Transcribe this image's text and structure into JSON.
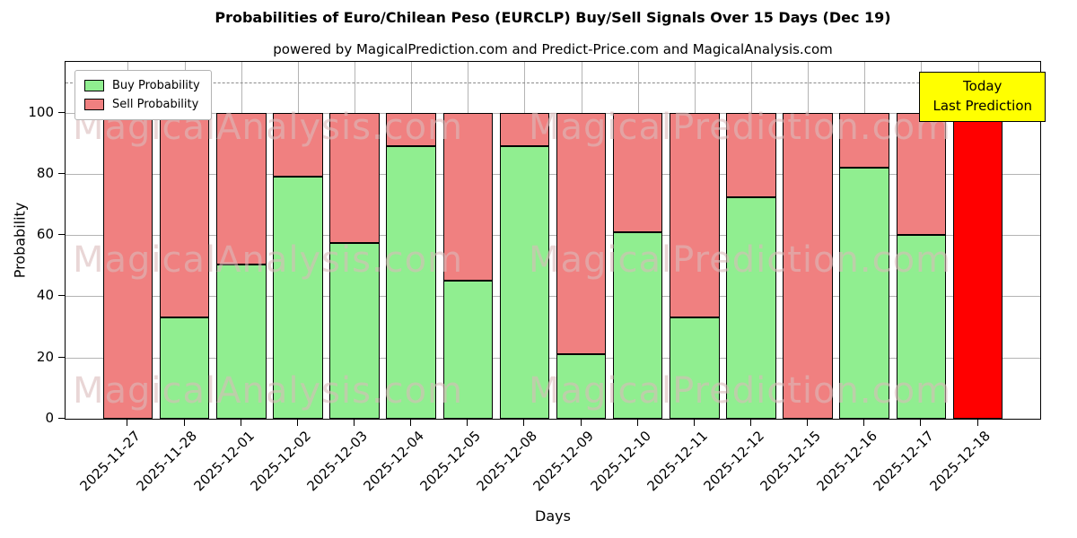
{
  "figure": {
    "title": "Probabilities of Euro/Chilean Peso (EURCLP) Buy/Sell Signals Over 15 Days (Dec 19)",
    "subtitle": "powered by MagicalPrediction.com and Predict-Price.com and MagicalAnalysis.com"
  },
  "axes": {
    "xlabel": "Days",
    "ylabel": "Probability"
  },
  "legend": {
    "items": [
      {
        "label": "Buy Probability",
        "color": "#90ee90"
      },
      {
        "label": "Sell Probability",
        "color": "#f08080"
      }
    ]
  },
  "annotation_box": {
    "line1": "Today",
    "line2": "Last Prediction",
    "bg": "#ffff00"
  },
  "watermarks": [
    "MagicalAnalysis.com",
    "MagicalPrediction.com"
  ],
  "chart_data": {
    "type": "bar",
    "stacked": true,
    "title": "Probabilities of Euro/Chilean Peso (EURCLP) Buy/Sell Signals Over 15 Days (Dec 19)",
    "subtitle": "powered by MagicalPrediction.com and Predict-Price.com and MagicalAnalysis.com",
    "xlabel": "Days",
    "ylabel": "Probability",
    "categories": [
      "2025-11-27",
      "2025-11-28",
      "2025-12-01",
      "2025-12-02",
      "2025-12-03",
      "2025-12-04",
      "2025-12-05",
      "2025-12-08",
      "2025-12-09",
      "2025-12-10",
      "2025-12-11",
      "2025-12-12",
      "2025-12-15",
      "2025-12-16",
      "2025-12-17",
      "2025-12-18"
    ],
    "series": [
      {
        "name": "Buy Probability",
        "color": "#90ee90",
        "values": [
          0,
          33,
          50.5,
          79,
          57.5,
          89,
          45,
          89,
          21,
          61,
          33,
          72.5,
          0,
          82,
          60,
          0
        ]
      },
      {
        "name": "Sell Probability",
        "color": "#f08080",
        "values": [
          100,
          67,
          49.5,
          21,
          42.5,
          11,
          55,
          11,
          79,
          39,
          67,
          27.5,
          100,
          18,
          40,
          100
        ]
      }
    ],
    "yticks": [
      0,
      20,
      40,
      60,
      80,
      100
    ],
    "ylim": [
      0,
      116.6
    ],
    "dashed_line_y": 110,
    "grid": true,
    "legend_position": "upper left",
    "last_bar_color": "#ff0000",
    "bar_edge_color": "#000000"
  }
}
